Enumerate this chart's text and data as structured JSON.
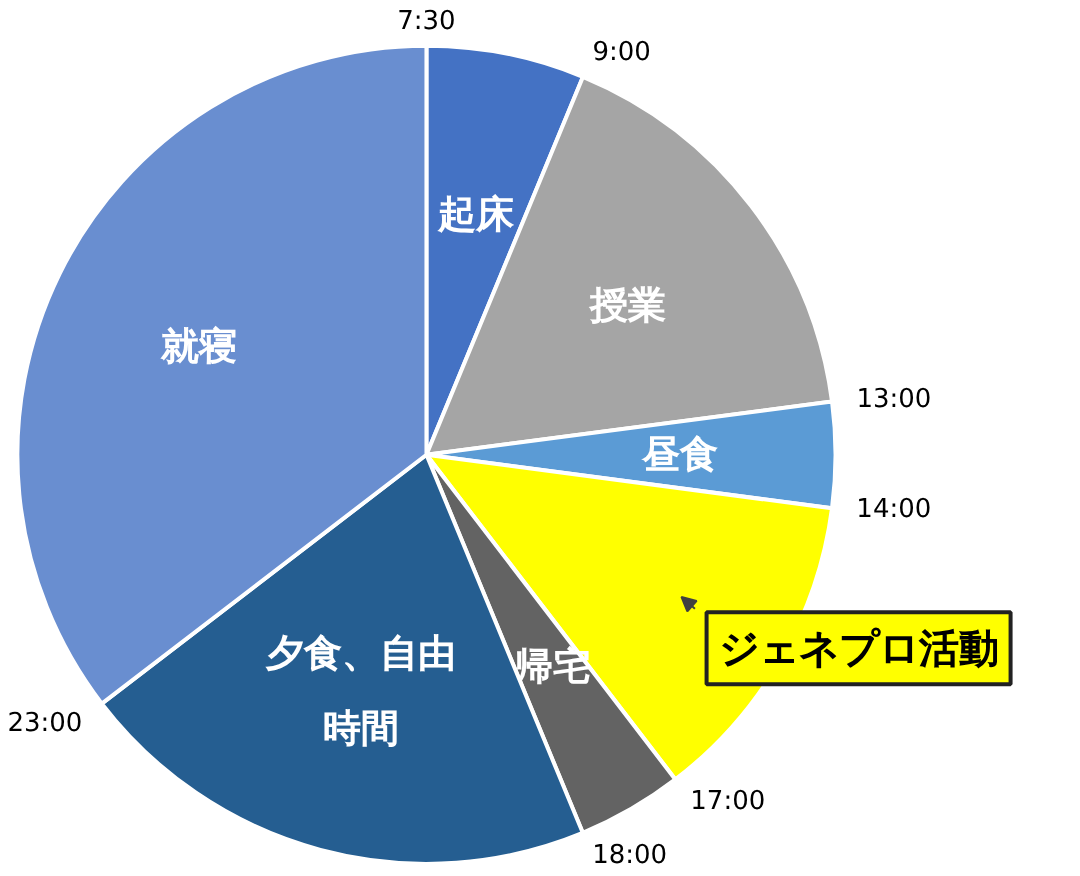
{
  "chart_data": {
    "type": "pie",
    "categories": [
      "起床",
      "授業",
      "昼食",
      "ジェネプロ活動",
      "帰宅",
      "夕食、自由時間",
      "就寝"
    ],
    "values": [
      6.25,
      16.67,
      4.17,
      12.5,
      4.17,
      20.83,
      35.41
    ],
    "colors": [
      "#4472c4",
      "#a5a5a5",
      "#5b9bd5",
      "#ffff00",
      "#636363",
      "#255e91",
      "#698ed0"
    ],
    "annotations": [
      "7:30",
      "9:00",
      "13:00",
      "14:00",
      "17:00",
      "18:00",
      "23:00"
    ],
    "legend": false
  }
}
